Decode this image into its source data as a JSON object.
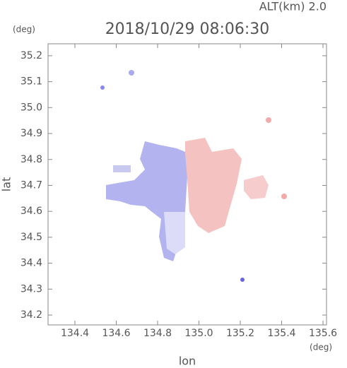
{
  "chart_data": {
    "type": "map",
    "title": "2018/10/29 08:06:30",
    "subtitle": "ALT(km) 2.0",
    "y_unit": "(deg)",
    "x_unit": "(deg)",
    "x_label": "lon",
    "y_label": "lat",
    "xlim": [
      134.27,
      135.617
    ],
    "ylim": [
      34.162,
      35.246
    ],
    "xticks": [
      134.4,
      134.6,
      134.8,
      {
        "value": 135,
        "label": "135.0"
      },
      135.2,
      135.4,
      135.6
    ],
    "yticks": [
      34.2,
      34.3,
      34.4,
      34.5,
      34.6,
      34.7,
      34.8,
      34.9,
      {
        "value": 35,
        "label": "35.0"
      },
      35.1,
      35.2
    ]
  }
}
